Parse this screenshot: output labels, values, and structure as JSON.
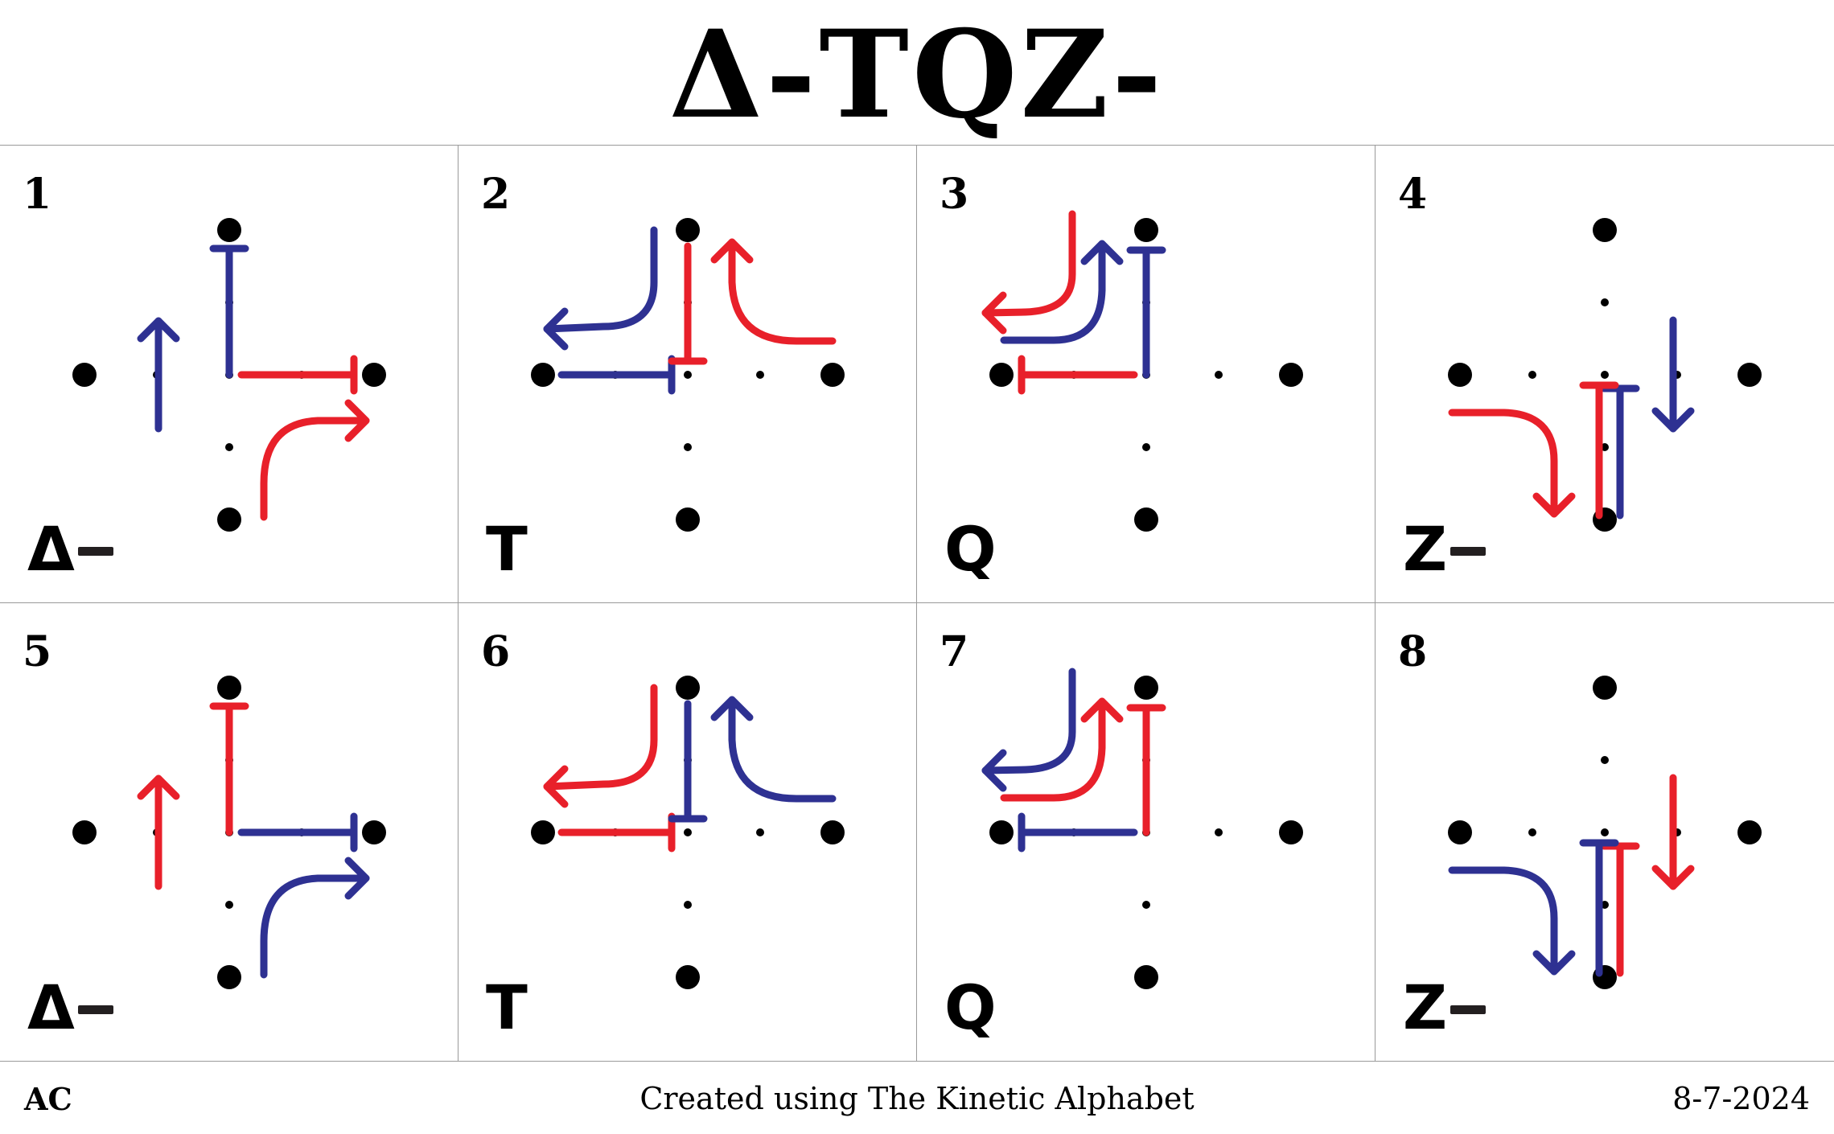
{
  "title": "Δ-TQZ-",
  "colors": {
    "red": "#e8202a",
    "blue": "#2e3192",
    "dot": "#000000"
  },
  "panels": [
    {
      "number": "1",
      "code": "Δ",
      "code_dash": true,
      "variant": "delta",
      "colors": [
        "blue",
        "red"
      ]
    },
    {
      "number": "2",
      "code": "T",
      "code_dash": false,
      "variant": "t",
      "colors": [
        "blue",
        "red"
      ]
    },
    {
      "number": "3",
      "code": "Q",
      "code_dash": false,
      "variant": "q",
      "colors": [
        "blue",
        "red"
      ]
    },
    {
      "number": "4",
      "code": "Z",
      "code_dash": true,
      "variant": "z",
      "colors": [
        "blue",
        "red"
      ]
    },
    {
      "number": "5",
      "code": "Δ",
      "code_dash": true,
      "variant": "delta",
      "colors": [
        "red",
        "blue"
      ]
    },
    {
      "number": "6",
      "code": "T",
      "code_dash": false,
      "variant": "t",
      "colors": [
        "red",
        "blue"
      ]
    },
    {
      "number": "7",
      "code": "Q",
      "code_dash": false,
      "variant": "q",
      "colors": [
        "red",
        "blue"
      ]
    },
    {
      "number": "8",
      "code": "Z",
      "code_dash": true,
      "variant": "z",
      "colors": [
        "red",
        "blue"
      ]
    }
  ],
  "footer": {
    "author": "AC",
    "credit": "Created using The Kinetic Alphabet",
    "date": "8-7-2024"
  }
}
